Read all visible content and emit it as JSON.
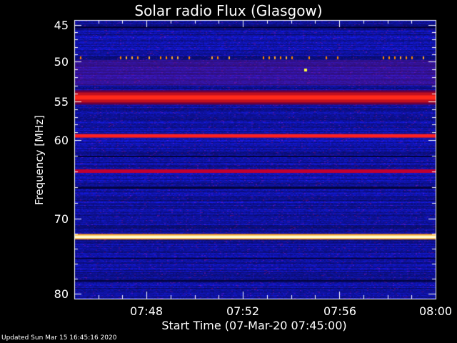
{
  "chart_data": {
    "type": "heatmap",
    "title": "Solar radio Flux (Glasgow)",
    "ylabel": "Frequency [MHz]",
    "xlabel": "Start Time (07-Mar-20 07:45:00)",
    "y_range_mhz": [
      45,
      80
    ],
    "y_ticks": [
      "45",
      "50",
      "55",
      "60",
      "70",
      "80"
    ],
    "x_range_minutes": [
      "07:45",
      "08:00"
    ],
    "x_ticks": [
      "07:48",
      "07:52",
      "07:56",
      "08:00"
    ],
    "bright_bands_mhz": [
      {
        "freq": 49.6,
        "color": "#ff6a00",
        "note": "intermittent"
      },
      {
        "freq": 54.5,
        "color": "#ff1a1a"
      },
      {
        "freq": 59.5,
        "color": "#ff2020"
      },
      {
        "freq": 64.0,
        "color": "#c00030"
      },
      {
        "freq": 72.4,
        "color": "#ffffb0"
      }
    ],
    "background_color": "#2030d0"
  },
  "footer": {
    "updated": "Updated Sun Mar 15 16:45:16 2020"
  }
}
